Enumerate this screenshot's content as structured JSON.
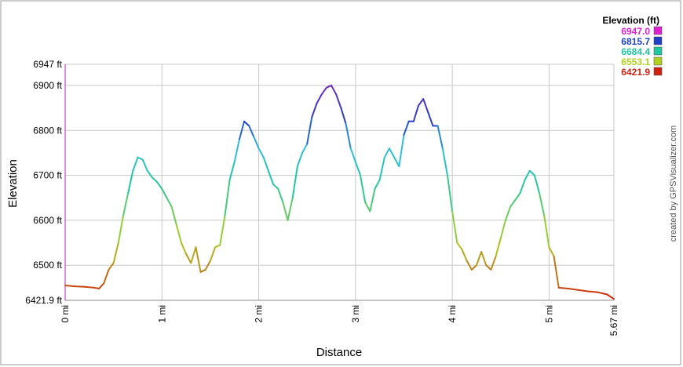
{
  "chart_data": {
    "type": "line",
    "xlabel": "Distance",
    "ylabel": "Elevation",
    "x_unit": "mi",
    "y_unit": "ft",
    "xlim": [
      0,
      5.67
    ],
    "ylim": [
      6421.9,
      6947
    ],
    "x_ticks": [
      {
        "value": 0,
        "label": "0 mi"
      },
      {
        "value": 1,
        "label": "1 mi"
      },
      {
        "value": 2,
        "label": "2 mi"
      },
      {
        "value": 3,
        "label": "3 mi"
      },
      {
        "value": 4,
        "label": "4 mi"
      },
      {
        "value": 5,
        "label": "5 mi"
      },
      {
        "value": 5.67,
        "label": "5.67 mi"
      }
    ],
    "y_ticks": [
      {
        "value": 6421.9,
        "label": "6421.9 ft"
      },
      {
        "value": 6500,
        "label": "6500 ft"
      },
      {
        "value": 6600,
        "label": "6600 ft"
      },
      {
        "value": 6700,
        "label": "6700 ft"
      },
      {
        "value": 6800,
        "label": "6800 ft"
      },
      {
        "value": 6900,
        "label": "6900 ft"
      },
      {
        "value": 6947,
        "label": "6947 ft"
      }
    ],
    "grid": true,
    "legend": {
      "title": "Elevation (ft)",
      "placement": "top-right",
      "entries": [
        {
          "label": "6947.0",
          "color": "#e020d0"
        },
        {
          "label": "6815.7",
          "color": "#2040c8"
        },
        {
          "label": "6684.4",
          "color": "#20c8a0"
        },
        {
          "label": "6553.1",
          "color": "#b0d020"
        },
        {
          "label": "6421.9",
          "color": "#d02010"
        }
      ]
    },
    "series": [
      {
        "x": [
          0.0,
          0.1,
          0.2,
          0.3,
          0.35,
          0.4,
          0.45,
          0.5,
          0.55,
          0.6,
          0.65,
          0.7,
          0.75,
          0.8,
          0.85,
          0.9,
          0.95,
          1.0,
          1.05,
          1.1,
          1.15,
          1.2,
          1.25,
          1.3,
          1.35,
          1.4,
          1.45,
          1.5,
          1.55,
          1.6,
          1.65,
          1.7,
          1.75,
          1.8,
          1.85,
          1.9,
          1.95,
          2.0,
          2.05,
          2.1,
          2.15,
          2.2,
          2.25,
          2.3,
          2.35,
          2.4,
          2.45,
          2.5,
          2.55,
          2.6,
          2.65,
          2.7,
          2.75,
          2.8,
          2.85,
          2.9,
          2.95,
          3.0,
          3.05,
          3.1,
          3.15,
          3.2,
          3.25,
          3.3,
          3.35,
          3.4,
          3.45,
          3.5,
          3.55,
          3.6,
          3.65,
          3.7,
          3.75,
          3.8,
          3.85,
          3.9,
          3.95,
          4.0,
          4.05,
          4.1,
          4.15,
          4.2,
          4.25,
          4.3,
          4.35,
          4.4,
          4.45,
          4.5,
          4.55,
          4.6,
          4.65,
          4.7,
          4.75,
          4.8,
          4.85,
          4.9,
          4.95,
          5.0,
          5.05,
          5.1,
          5.2,
          5.3,
          5.4,
          5.5,
          5.6,
          5.67
        ],
        "y": [
          6455,
          6453,
          6452,
          6450,
          6448,
          6460,
          6490,
          6505,
          6550,
          6610,
          6660,
          6710,
          6740,
          6735,
          6710,
          6695,
          6685,
          6670,
          6650,
          6630,
          6590,
          6550,
          6525,
          6505,
          6540,
          6485,
          6490,
          6510,
          6540,
          6545,
          6610,
          6690,
          6730,
          6780,
          6820,
          6810,
          6785,
          6760,
          6740,
          6710,
          6680,
          6670,
          6640,
          6600,
          6650,
          6720,
          6750,
          6770,
          6830,
          6860,
          6880,
          6895,
          6900,
          6880,
          6850,
          6815,
          6760,
          6730,
          6700,
          6640,
          6620,
          6670,
          6690,
          6740,
          6760,
          6740,
          6720,
          6790,
          6820,
          6820,
          6855,
          6870,
          6840,
          6810,
          6810,
          6760,
          6700,
          6620,
          6550,
          6535,
          6510,
          6490,
          6500,
          6530,
          6500,
          6490,
          6520,
          6560,
          6600,
          6630,
          6645,
          6660,
          6690,
          6710,
          6700,
          6660,
          6610,
          6540,
          6520,
          6450,
          6448,
          6445,
          6442,
          6440,
          6435,
          6425
        ]
      }
    ]
  },
  "credit": "created by GPSVisualizer.com"
}
